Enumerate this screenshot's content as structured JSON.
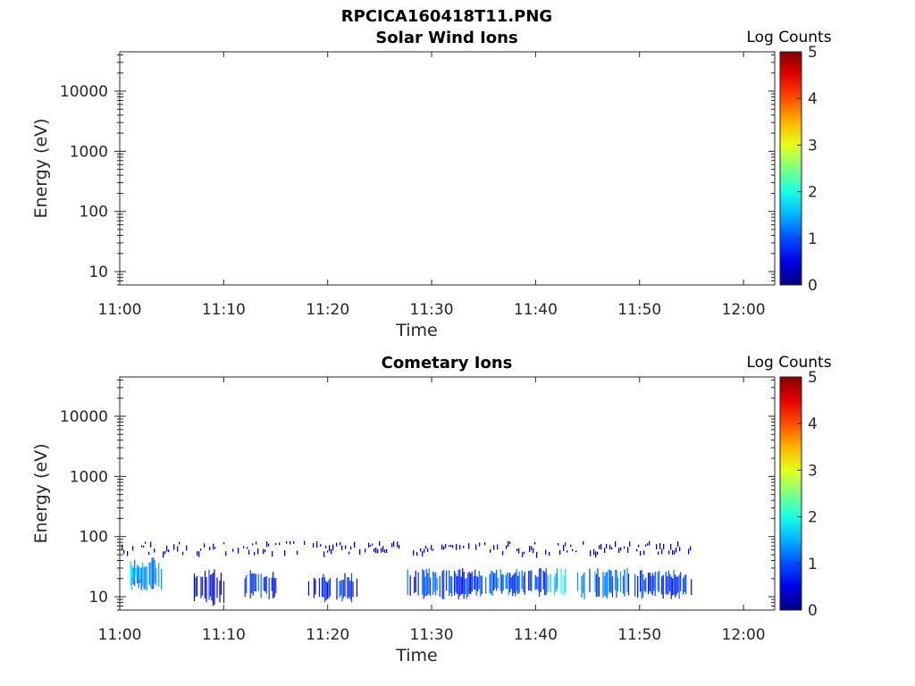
{
  "figure_title": "RPCICA160418T11.PNG",
  "chart_data": [
    {
      "type": "heatmap",
      "title": "Solar Wind Ions",
      "xlabel": "Time",
      "ylabel": "Energy (eV)",
      "x_ticks": [
        "11:00",
        "11:10",
        "11:20",
        "11:30",
        "11:40",
        "11:50",
        "12:00"
      ],
      "xlim": [
        "11:00",
        "12:03"
      ],
      "y_scale": "log",
      "y_ticks": [
        "10",
        "100",
        "1000",
        "10000"
      ],
      "ylim": [
        6,
        45000
      ],
      "colorbar": {
        "label": "Log Counts",
        "ticks": [
          "0",
          "1",
          "2",
          "3",
          "4",
          "5"
        ],
        "range": [
          0,
          5
        ],
        "colormap": "jet"
      },
      "blocks": []
    },
    {
      "type": "heatmap",
      "title": "Cometary Ions",
      "xlabel": "Time",
      "ylabel": "Energy (eV)",
      "x_ticks": [
        "11:00",
        "11:10",
        "11:20",
        "11:30",
        "11:40",
        "11:50",
        "12:00"
      ],
      "xlim": [
        "11:00",
        "12:03"
      ],
      "y_scale": "log",
      "y_ticks": [
        "10",
        "100",
        "1000",
        "10000"
      ],
      "ylim": [
        6,
        45000
      ],
      "colorbar": {
        "label": "Log Counts",
        "ticks": [
          "0",
          "1",
          "2",
          "3",
          "4",
          "5"
        ],
        "range": [
          0,
          5
        ],
        "colormap": "jet"
      },
      "blocks": [
        {
          "t_start": "11:01",
          "t_end": "11:04",
          "e_low": 12,
          "e_high": 45,
          "log_counts": 1.3
        },
        {
          "t_start": "11:01",
          "t_end": "11:02",
          "e_low": 18,
          "e_high": 35,
          "log_counts": 1.8
        },
        {
          "t_start": "11:07",
          "t_end": "11:10",
          "e_low": 7,
          "e_high": 30,
          "log_counts": 0.6
        },
        {
          "t_start": "11:12",
          "t_end": "11:15",
          "e_low": 9,
          "e_high": 28,
          "log_counts": 0.8
        },
        {
          "t_start": "11:18",
          "t_end": "11:23",
          "e_low": 8,
          "e_high": 25,
          "log_counts": 0.7
        },
        {
          "t_start": "11:27",
          "t_end": "11:34",
          "e_low": 9,
          "e_high": 30,
          "log_counts": 0.9
        },
        {
          "t_start": "11:34",
          "t_end": "11:38",
          "e_low": 10,
          "e_high": 30,
          "log_counts": 1.0
        },
        {
          "t_start": "11:38",
          "t_end": "11:41",
          "e_low": 10,
          "e_high": 30,
          "log_counts": 0.9
        },
        {
          "t_start": "11:41",
          "t_end": "11:43",
          "e_low": 10,
          "e_high": 30,
          "log_counts": 1.7
        },
        {
          "t_start": "11:44",
          "t_end": "11:49",
          "e_low": 9,
          "e_high": 32,
          "log_counts": 1.2
        },
        {
          "t_start": "11:49",
          "t_end": "11:55",
          "e_low": 9,
          "e_high": 28,
          "log_counts": 0.8
        }
      ],
      "sparse_band": {
        "t_start": "11:00",
        "t_end": "11:55",
        "e_low": 55,
        "e_high": 85,
        "log_counts": 0.4
      }
    }
  ]
}
